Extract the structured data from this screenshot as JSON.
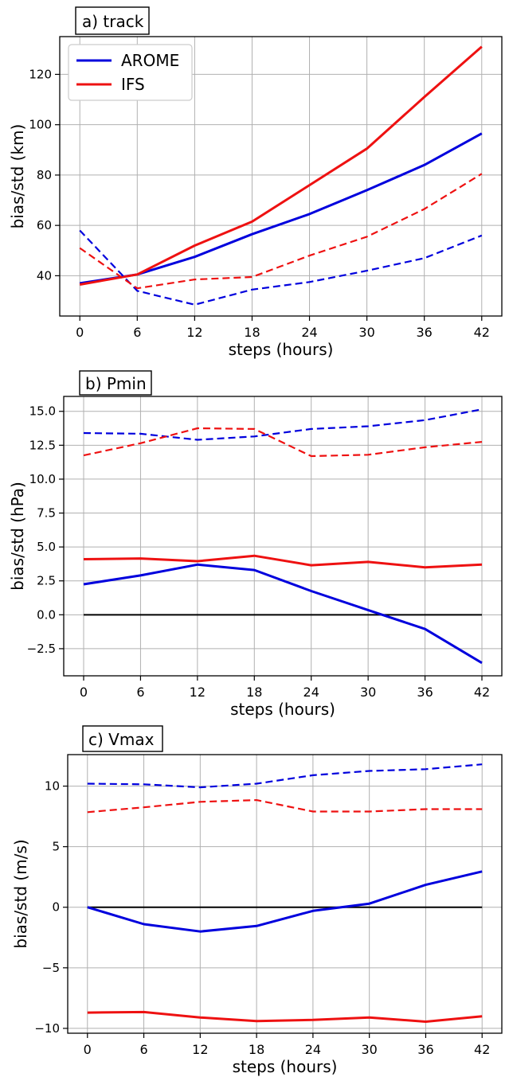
{
  "chart_data": [
    {
      "type": "line",
      "panel_label": "a) track",
      "xlabel": "steps (hours)",
      "ylabel": "bias/std (km)",
      "x": [
        0,
        6,
        12,
        18,
        24,
        30,
        36,
        42
      ],
      "xticks": [
        0,
        6,
        12,
        18,
        24,
        30,
        36,
        42
      ],
      "yticks": [
        40,
        60,
        80,
        100,
        120
      ],
      "xlim": [
        -2.1,
        44.1
      ],
      "ylim": [
        24,
        135
      ],
      "grid": true,
      "legend": {
        "position": "top-left",
        "entries": [
          {
            "name": "AROME",
            "color": "#0000dd"
          },
          {
            "name": "IFS",
            "color": "#ee1111"
          }
        ]
      },
      "series": [
        {
          "name": "AROME",
          "kind": "std",
          "style": "solid",
          "color": "#0000dd",
          "values": [
            37,
            40.5,
            47.5,
            56.5,
            64.5,
            74,
            84,
            96.5
          ]
        },
        {
          "name": "IFS",
          "kind": "std",
          "style": "solid",
          "color": "#ee1111",
          "values": [
            36.5,
            40.5,
            52,
            61.5,
            76,
            90.5,
            111,
            131
          ]
        },
        {
          "name": "AROME",
          "kind": "bias",
          "style": "dashed",
          "color": "#0000dd",
          "values": [
            58,
            34,
            28.5,
            34.5,
            37.5,
            42,
            47,
            56
          ]
        },
        {
          "name": "IFS",
          "kind": "bias",
          "style": "dashed",
          "color": "#ee1111",
          "values": [
            51,
            35,
            38.5,
            39.5,
            48,
            55.5,
            66.5,
            80.5
          ]
        }
      ]
    },
    {
      "type": "line",
      "panel_label": "b) Pmin",
      "xlabel": "steps (hours)",
      "ylabel": "bias/std (hPa)",
      "x": [
        0,
        6,
        12,
        18,
        24,
        30,
        36,
        42
      ],
      "xticks": [
        0,
        6,
        12,
        18,
        24,
        30,
        36,
        42
      ],
      "yticks": [
        -2.5,
        0.0,
        2.5,
        5.0,
        7.5,
        10.0,
        12.5,
        15.0
      ],
      "ytick_labels": [
        "−2.5",
        "0.0",
        "2.5",
        "5.0",
        "7.5",
        "10.0",
        "12.5",
        "15.0"
      ],
      "xlim": [
        -2.1,
        44.1
      ],
      "ylim": [
        -4.5,
        16.1
      ],
      "grid": true,
      "zero_line": true,
      "series": [
        {
          "name": "AROME",
          "kind": "bias",
          "style": "solid",
          "color": "#0000dd",
          "values": [
            2.25,
            2.9,
            3.7,
            3.3,
            1.75,
            0.35,
            -1.05,
            -3.55
          ]
        },
        {
          "name": "IFS",
          "kind": "bias",
          "style": "solid",
          "color": "#ee1111",
          "values": [
            4.1,
            4.15,
            3.95,
            4.35,
            3.65,
            3.9,
            3.5,
            3.7
          ]
        },
        {
          "name": "AROME",
          "kind": "std",
          "style": "dashed",
          "color": "#0000dd",
          "values": [
            13.4,
            13.35,
            12.9,
            13.15,
            13.7,
            13.9,
            14.35,
            15.15
          ]
        },
        {
          "name": "IFS",
          "kind": "std",
          "style": "dashed",
          "color": "#ee1111",
          "values": [
            11.75,
            12.65,
            13.75,
            13.7,
            11.7,
            11.8,
            12.35,
            12.75
          ]
        }
      ]
    },
    {
      "type": "line",
      "panel_label": "c) Vmax",
      "xlabel": "steps (hours)",
      "ylabel": "bias/std (m/s)",
      "x": [
        0,
        6,
        12,
        18,
        24,
        30,
        36,
        42
      ],
      "xticks": [
        0,
        6,
        12,
        18,
        24,
        30,
        36,
        42
      ],
      "yticks": [
        -10,
        -5,
        0,
        5,
        10
      ],
      "ytick_labels": [
        "−10",
        "−5",
        "0",
        "5",
        "10"
      ],
      "xlim": [
        -2.1,
        44.1
      ],
      "ylim": [
        -10.4,
        12.6
      ],
      "grid": true,
      "zero_line": true,
      "series": [
        {
          "name": "AROME",
          "kind": "bias",
          "style": "solid",
          "color": "#0000dd",
          "values": [
            0.0,
            -1.4,
            -2.0,
            -1.55,
            -0.3,
            0.3,
            1.85,
            2.95
          ]
        },
        {
          "name": "IFS",
          "kind": "bias",
          "style": "solid",
          "color": "#ee1111",
          "values": [
            -8.7,
            -8.65,
            -9.1,
            -9.4,
            -9.3,
            -9.1,
            -9.45,
            -9.0
          ]
        },
        {
          "name": "AROME",
          "kind": "std",
          "style": "dashed",
          "color": "#0000dd",
          "values": [
            10.2,
            10.15,
            9.9,
            10.2,
            10.9,
            11.25,
            11.4,
            11.8
          ]
        },
        {
          "name": "IFS",
          "kind": "std",
          "style": "dashed",
          "color": "#ee1111",
          "values": [
            7.85,
            8.25,
            8.7,
            8.85,
            7.9,
            7.9,
            8.1,
            8.1
          ]
        }
      ]
    }
  ]
}
